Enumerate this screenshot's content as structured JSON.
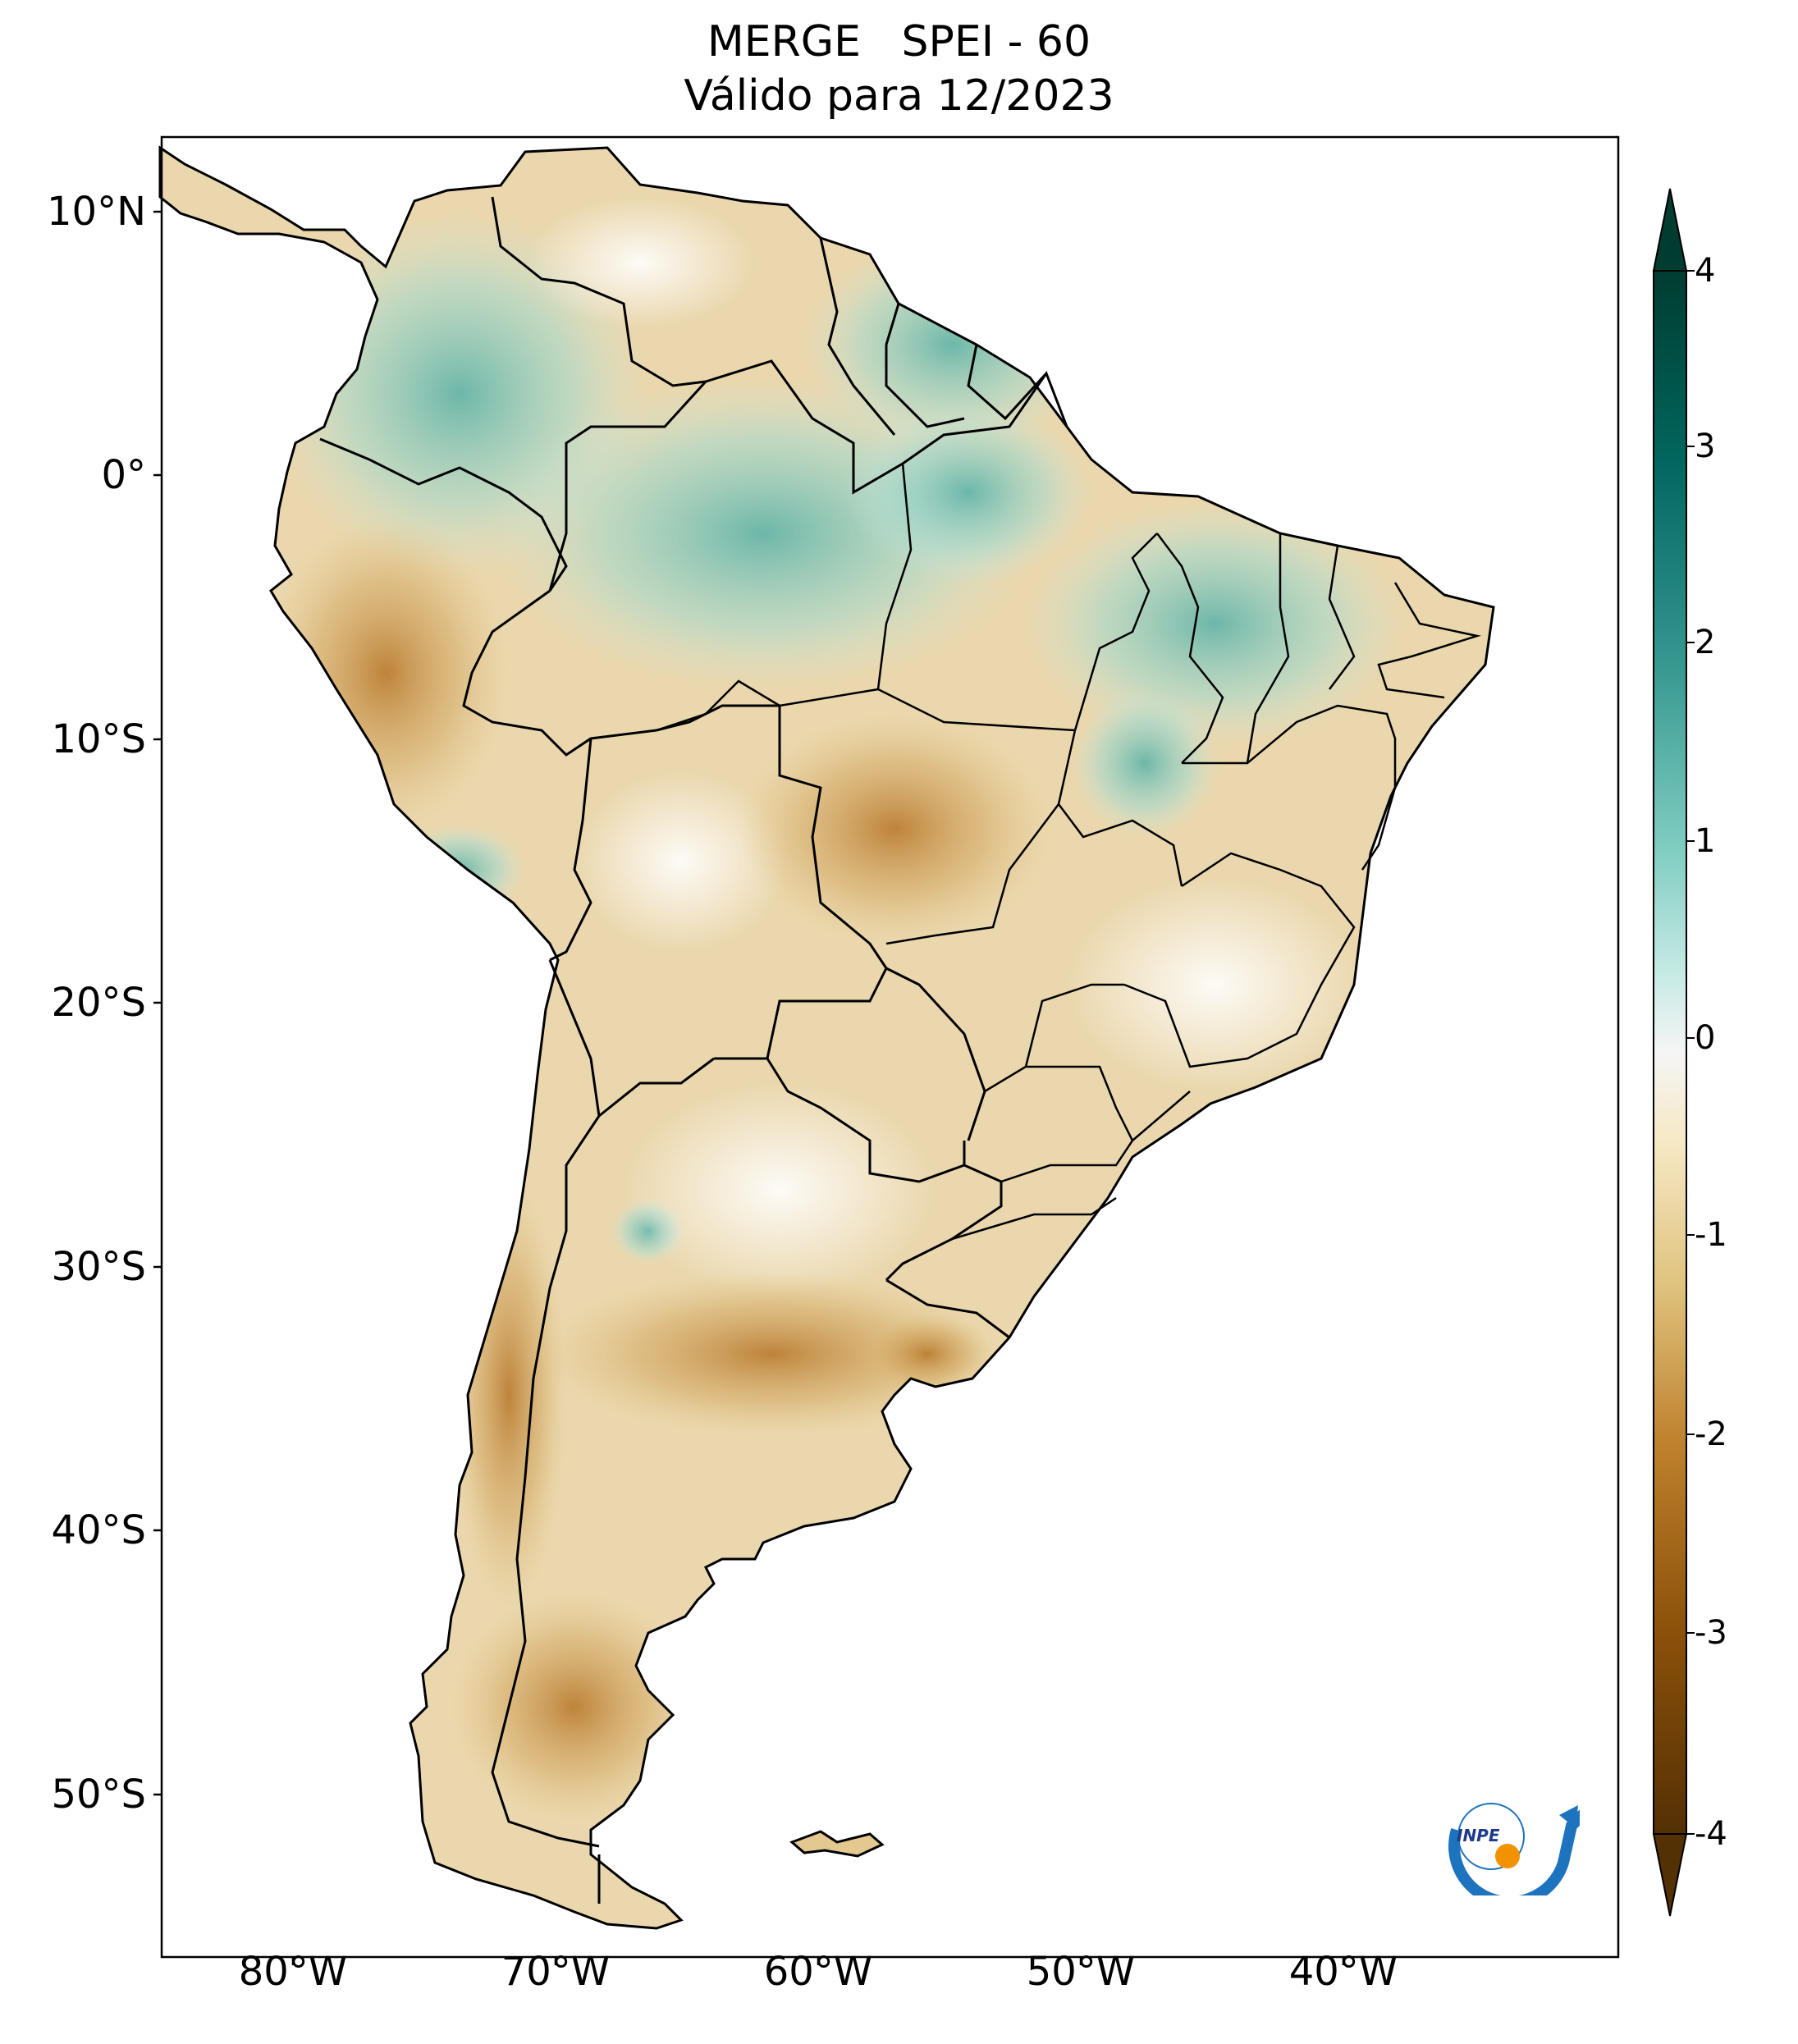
{
  "title": {
    "line1_left": "MERGE",
    "line1_right": "SPEI - 60",
    "line2": "Válido para 12/2023"
  },
  "axes": {
    "lat_labels": [
      "10°N",
      "0°",
      "10°S",
      "20°S",
      "30°S",
      "40°S",
      "50°S"
    ],
    "lon_labels": [
      "80°W",
      "70°W",
      "60°W",
      "50°W",
      "40°W"
    ],
    "lat_values": [
      10,
      0,
      -10,
      -20,
      -30,
      -40,
      -50
    ],
    "lon_values": [
      -80,
      -70,
      -60,
      -50,
      -40
    ],
    "lon_range": [
      -85,
      -29.5
    ],
    "lat_range": [
      -56,
      13
    ]
  },
  "colorbar": {
    "ticks": [
      "4",
      "3",
      "2",
      "1",
      "0",
      "-1",
      "-2",
      "-3",
      "-4"
    ],
    "min": -4,
    "max": 4,
    "extend": "both",
    "colormap": "BrBG",
    "colors": {
      "dark_brown": "#543005",
      "brown": "#8c510a",
      "tan": "#bf812d",
      "light_tan": "#dfc27d",
      "cream": "#f6e8c3",
      "neutral": "#f5f5f5",
      "light_teal": "#c7eae5",
      "teal": "#80cdc1",
      "mid_teal": "#35978f",
      "dark_teal": "#01665e",
      "deepest_teal": "#003c30"
    }
  },
  "logo": {
    "text": "INPE"
  }
}
